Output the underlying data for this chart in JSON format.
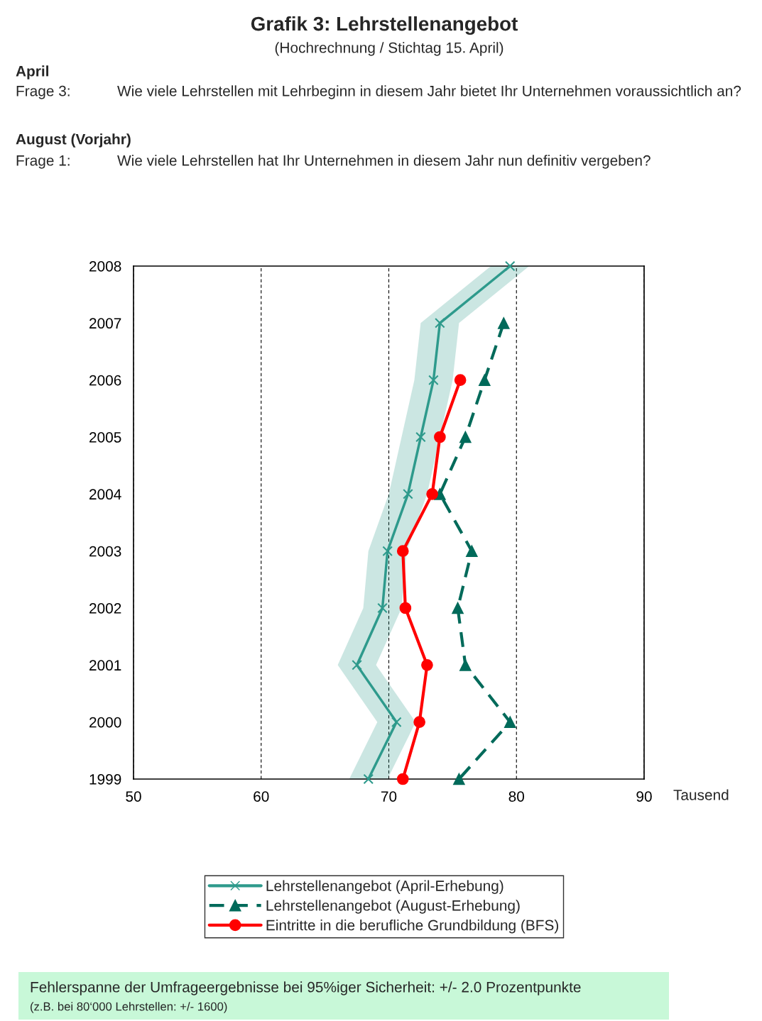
{
  "chart_data": {
    "type": "line",
    "orientation": "horizontal",
    "title": "Grafik 3: Lehrstellenangebot",
    "subtitle": "(Hochrechnung / Stichtag 15. April)",
    "xlabel": "Tausend",
    "annotations": [
      "April",
      "Frage 3:",
      "Wie viele Lehrstellen mit Lehrbeginn in diesem Jahr bietet Ihr Unternehmen voraussichtlich an?",
      "August (Vorjahr)",
      "Frage 1:",
      "Wie viele Lehrstellen hat Ihr Unternehmen in diesem Jahr nun definitiv vergeben?",
      "Fehlerspanne der Umfrageergebnisse bei 95%iger Sicherheit: +/- 2.0 Prozentpunkte",
      "(z.B. bei 80‘000 Lehrstellen: +/- 1600)"
    ],
    "categories": [
      "2008",
      "2007",
      "2006",
      "2005",
      "2004",
      "2003",
      "2002",
      "2001",
      "2000",
      "1999"
    ],
    "xlim": [
      50,
      90
    ],
    "xticks": [
      50,
      60,
      70,
      80,
      90
    ],
    "grid": "x",
    "legend": "bottom",
    "series": [
      {
        "name": "Lehrstellenangebot (April-Erhebung)",
        "color": "#2e9a8c",
        "marker": "cross",
        "line_style": "solid",
        "values": [
          79.5,
          74.0,
          73.5,
          72.5,
          71.5,
          69.9,
          69.5,
          67.5,
          70.6,
          68.4
        ],
        "lower": [
          78.0,
          72.5,
          72.0,
          71.0,
          70.0,
          68.4,
          68.0,
          66.0,
          69.1,
          66.9
        ],
        "upper": [
          81.0,
          75.5,
          75.0,
          74.0,
          73.0,
          71.4,
          71.0,
          69.0,
          72.1,
          69.9
        ]
      },
      {
        "name": "Lehrstellenangebot (August-Erhebung)",
        "color": "#006a5a",
        "marker": "triangle",
        "line_style": "dashed",
        "values": [
          null,
          79.0,
          77.5,
          76.0,
          74.0,
          76.5,
          75.4,
          76.0,
          79.5,
          75.5
        ]
      },
      {
        "name": "Eintritte in die berufliche Grundbildung (BFS)",
        "color": "#ff0000",
        "marker": "circle",
        "line_style": "solid",
        "values": [
          null,
          null,
          75.6,
          74.0,
          73.4,
          71.1,
          71.3,
          73.0,
          72.4,
          71.1
        ]
      }
    ]
  }
}
